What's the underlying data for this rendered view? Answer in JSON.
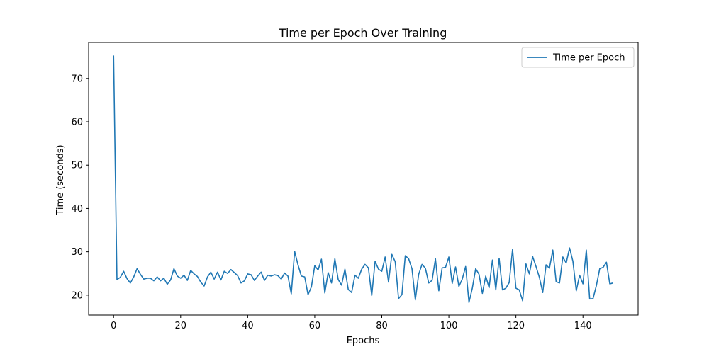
{
  "chart_data": {
    "type": "line",
    "title": "Time per Epoch Over Training",
    "xlabel": "Epochs",
    "ylabel": "Time (seconds)",
    "xlim": [
      -7.45,
      156.45
    ],
    "ylim": [
      15.4,
      78.3
    ],
    "xticks": [
      0,
      20,
      40,
      60,
      80,
      100,
      120,
      140
    ],
    "yticks": [
      20,
      30,
      40,
      50,
      60,
      70
    ],
    "grid": false,
    "legend_position": "upper-right",
    "color": "#1f77b4",
    "series": [
      {
        "name": "Time per Epoch",
        "x": [
          0,
          1,
          2,
          3,
          4,
          5,
          6,
          7,
          8,
          9,
          10,
          11,
          12,
          13,
          14,
          15,
          16,
          17,
          18,
          19,
          20,
          21,
          22,
          23,
          24,
          25,
          26,
          27,
          28,
          29,
          30,
          31,
          32,
          33,
          34,
          35,
          36,
          37,
          38,
          39,
          40,
          41,
          42,
          43,
          44,
          45,
          46,
          47,
          48,
          49,
          50,
          51,
          52,
          53,
          54,
          55,
          56,
          57,
          58,
          59,
          60,
          61,
          62,
          63,
          64,
          65,
          66,
          67,
          68,
          69,
          70,
          71,
          72,
          73,
          74,
          75,
          76,
          77,
          78,
          79,
          80,
          81,
          82,
          83,
          84,
          85,
          86,
          87,
          88,
          89,
          90,
          91,
          92,
          93,
          94,
          95,
          96,
          97,
          98,
          99,
          100,
          101,
          102,
          103,
          104,
          105,
          106,
          107,
          108,
          109,
          110,
          111,
          112,
          113,
          114,
          115,
          116,
          117,
          118,
          119,
          120,
          121,
          122,
          123,
          124,
          125,
          126,
          127,
          128,
          129,
          130,
          131,
          132,
          133,
          134,
          135,
          136,
          137,
          138,
          139,
          140,
          141,
          142,
          143,
          144,
          145,
          146,
          147,
          148,
          149
        ],
        "values": [
          75.3,
          23.6,
          24.1,
          25.5,
          23.8,
          22.8,
          24.2,
          26.1,
          24.8,
          23.7,
          23.9,
          23.9,
          23.3,
          24.2,
          23.3,
          23.9,
          22.5,
          23.5,
          26.1,
          24.4,
          23.9,
          24.6,
          23.4,
          25.7,
          24.9,
          24.3,
          23.0,
          22.1,
          24.2,
          25.3,
          23.7,
          25.3,
          23.5,
          25.5,
          25.0,
          25.9,
          25.2,
          24.5,
          22.8,
          23.3,
          24.9,
          24.7,
          23.4,
          24.4,
          25.3,
          23.4,
          24.6,
          24.4,
          24.7,
          24.5,
          23.7,
          25.1,
          24.4,
          20.3,
          30.1,
          27.0,
          24.4,
          24.2,
          20.1,
          21.9,
          26.8,
          25.8,
          28.3,
          20.5,
          25.2,
          22.8,
          28.4,
          23.6,
          22.3,
          26.0,
          21.3,
          20.6,
          24.6,
          23.9,
          26.0,
          27.1,
          26.3,
          19.9,
          27.8,
          26.0,
          25.5,
          28.8,
          23.0,
          29.4,
          27.7,
          19.2,
          20.1,
          29.1,
          28.4,
          26.1,
          18.9,
          24.8,
          27.1,
          26.2,
          22.8,
          23.4,
          28.4,
          21.0,
          26.3,
          26.4,
          28.8,
          22.7,
          26.5,
          22.0,
          23.7,
          26.6,
          18.3,
          21.6,
          26.1,
          24.8,
          20.4,
          24.4,
          21.7,
          28.1,
          21.2,
          28.5,
          21.2,
          21.6,
          22.9,
          30.6,
          21.6,
          21.2,
          18.7,
          27.2,
          24.9,
          28.9,
          26.6,
          24.1,
          20.6,
          27.0,
          26.2,
          30.4,
          23.1,
          22.8,
          28.8,
          27.4,
          30.9,
          27.8,
          21.0,
          24.6,
          22.6,
          30.4,
          19.1,
          19.2,
          22.2,
          26.1,
          26.4,
          27.6,
          22.6,
          22.8
        ]
      }
    ]
  }
}
